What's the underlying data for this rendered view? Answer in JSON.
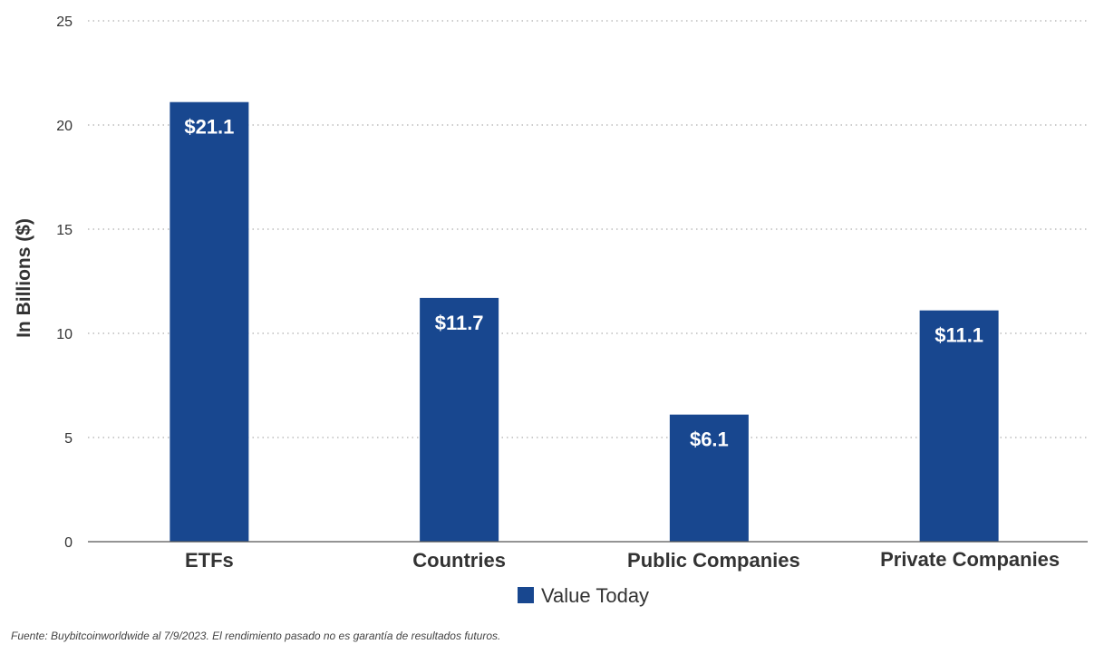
{
  "chart_data": {
    "type": "bar",
    "categories": [
      "ETFs",
      "Countries",
      "Public Companies",
      "Private Companies"
    ],
    "series": [
      {
        "name": "Value Today",
        "values": [
          21.1,
          11.7,
          6.1,
          11.1
        ]
      }
    ],
    "data_labels": [
      "$21.1",
      "$11.7",
      "$6.1",
      "$11.1"
    ],
    "ylabel": "In Billions ($)",
    "xlabel": "",
    "ylim": [
      0,
      25
    ],
    "yticks": [
      0,
      5,
      10,
      15,
      20,
      25
    ],
    "grid": true,
    "legend": "bottom-center",
    "colors": {
      "bar": "#18478f",
      "grid": "#999999",
      "axis": "#555555"
    }
  },
  "source_note": "Fuente: Buybitcoinworldwide al 7/9/2023. El rendimiento pasado no es garantía de resultados futuros."
}
